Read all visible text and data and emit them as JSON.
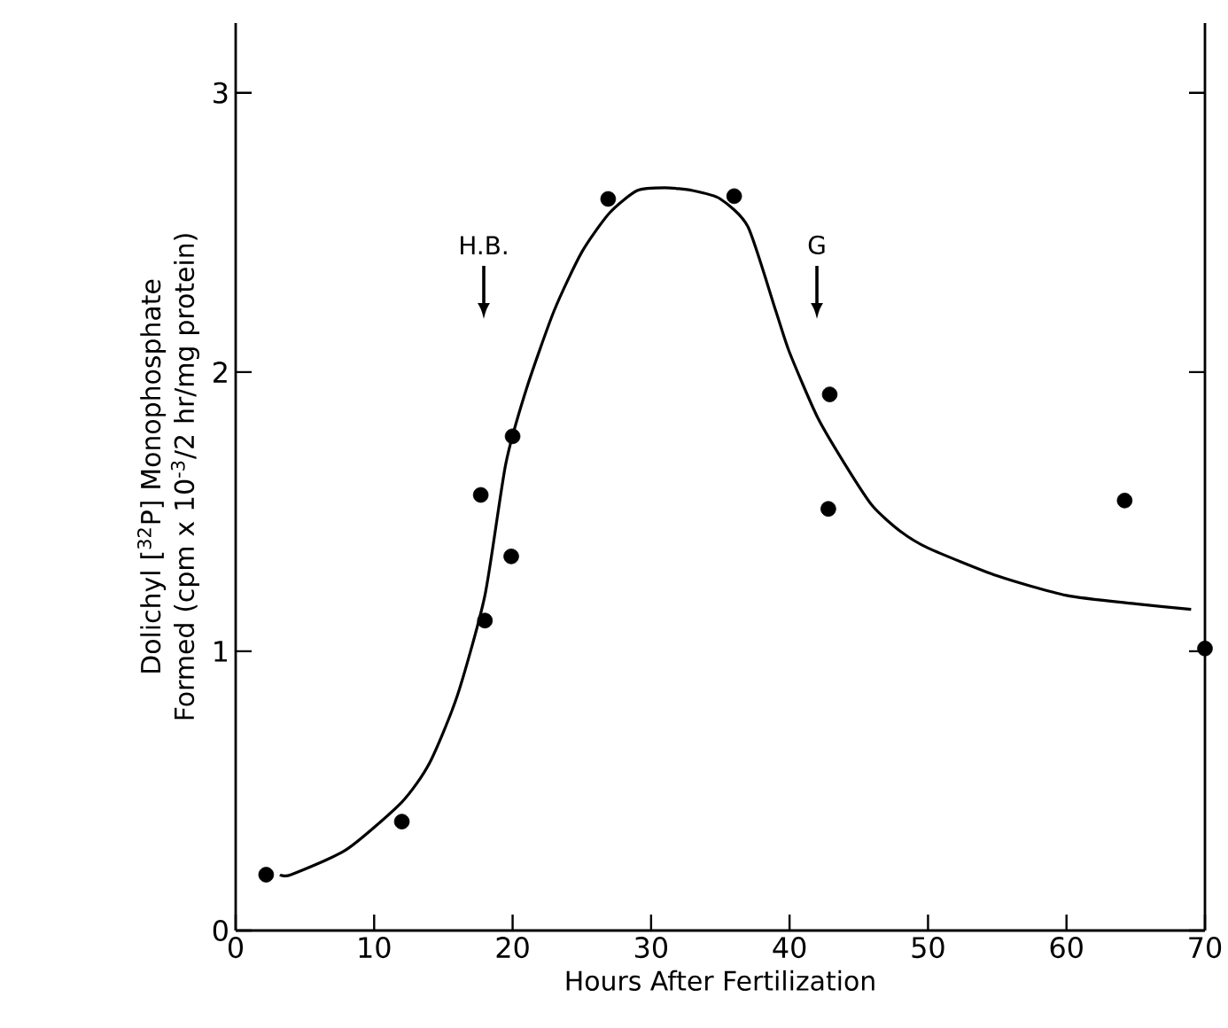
{
  "chart_data": {
    "type": "scatter",
    "xlabel": "Hours After Fertilization",
    "ylabel": "Dolichyl [$^{32}$P] Monophosphate Formed (cpm x 10$^{-3}$/2 hr/mg protein)",
    "xlim": [
      0,
      70
    ],
    "ylim": [
      0,
      3.25
    ],
    "xticks": [
      0,
      10,
      20,
      30,
      40,
      50,
      60,
      70
    ],
    "yticks": [
      0,
      1,
      2,
      3
    ],
    "grid": false,
    "series": [
      {
        "marker": "circle",
        "color": "#000000",
        "x": [
          2.2,
          12.0,
          17.7,
          18.0,
          20.0,
          19.9,
          26.9,
          36.0,
          42.9,
          42.8,
          64.2,
          70.0
        ],
        "values": [
          0.2,
          0.39,
          1.56,
          1.11,
          1.77,
          1.34,
          2.62,
          2.63,
          1.92,
          1.51,
          1.54,
          1.01
        ]
      },
      {
        "type": "line",
        "marker": "none",
        "line_style": "solid",
        "color": "#000000",
        "x": [
          3.2,
          4,
          8,
          12,
          14,
          16,
          18,
          19.5,
          21,
          23,
          25,
          27,
          29,
          31,
          33,
          35,
          37,
          39,
          40,
          42,
          44,
          46,
          48,
          50,
          55,
          60,
          65,
          69
        ],
        "values": [
          0.2,
          0.2,
          0.29,
          0.46,
          0.6,
          0.84,
          1.2,
          1.67,
          1.94,
          2.22,
          2.43,
          2.57,
          2.65,
          2.66,
          2.65,
          2.62,
          2.52,
          2.22,
          2.07,
          1.84,
          1.67,
          1.52,
          1.43,
          1.37,
          1.27,
          1.2,
          1.17,
          1.15
        ]
      }
    ],
    "annotations": [
      "H.B.",
      "G"
    ]
  }
}
